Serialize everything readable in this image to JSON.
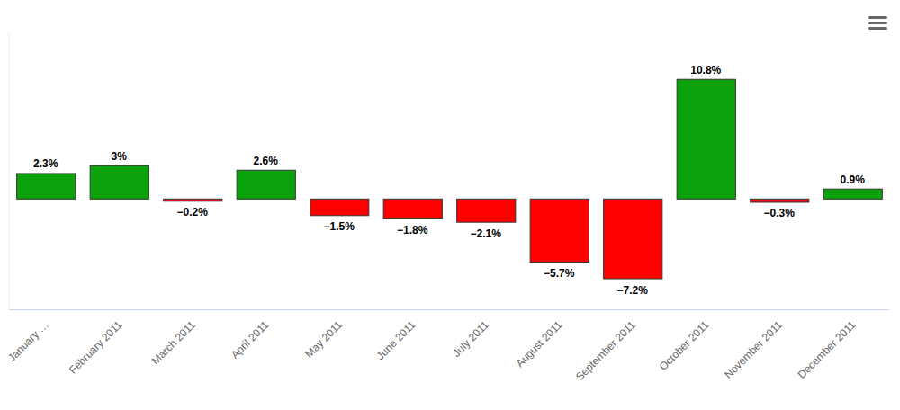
{
  "chart_data": {
    "type": "bar",
    "categories": [
      "January …",
      "February 2011",
      "March 2011",
      "April 2011",
      "May 2011",
      "June 2011",
      "July 2011",
      "August 2011",
      "September 2011",
      "October 2011",
      "November 2011",
      "December 2011"
    ],
    "values": [
      2.3,
      3,
      -0.2,
      2.6,
      -1.5,
      -1.8,
      -2.1,
      -5.7,
      -7.2,
      10.8,
      -0.3,
      0.9
    ],
    "value_labels": [
      "2.3%",
      "3%",
      "−0.2%",
      "2.6%",
      "−1.5%",
      "−1.8%",
      "−2.1%",
      "−5.7%",
      "−7.2%",
      "10.8%",
      "−0.3%",
      "0.9%"
    ],
    "colors": [
      "#0ca20c",
      "#0ca20c",
      "#ee1111",
      "#0ca20c",
      "#ff0000",
      "#ff0000",
      "#ff0000",
      "#ff0000",
      "#ff0000",
      "#0ca20c",
      "#ee1111",
      "#0ca20c"
    ],
    "ylim": [
      -10,
      15
    ],
    "data_labels": true,
    "tick_labels": "x",
    "grid": false
  }
}
